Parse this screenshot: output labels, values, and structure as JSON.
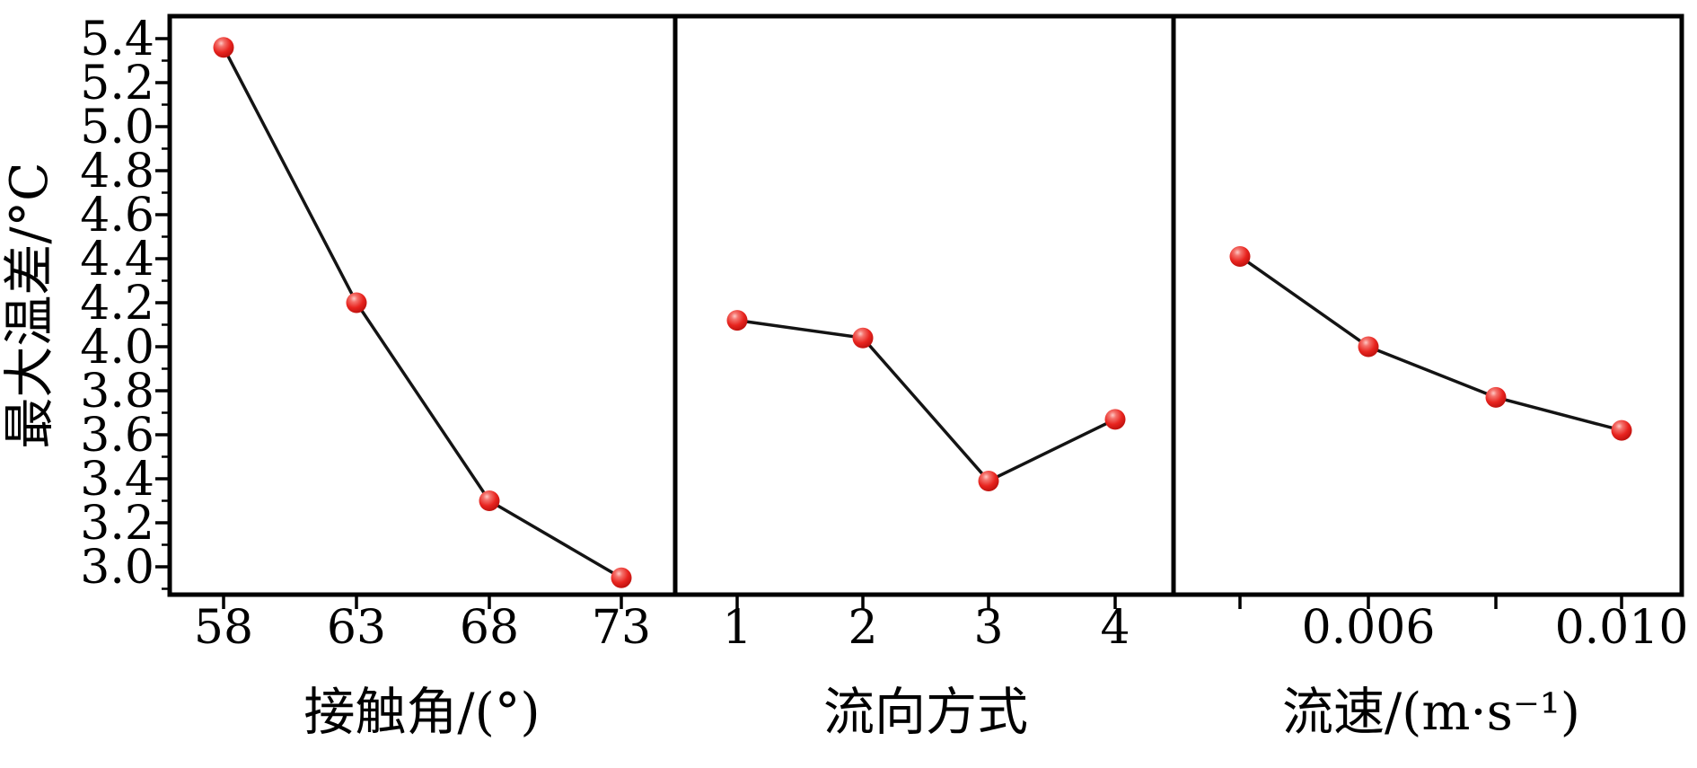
{
  "figure": {
    "background": "#ffffff",
    "axis_color": "#000000",
    "line_color": "#141414",
    "marker_color": "#e8241f",
    "marker_edge": "#b80f0c",
    "marker_highlight": "#ffc9c5"
  },
  "chart_data": {
    "type": "line",
    "title": "",
    "ylabel": "最大温差/°C",
    "ylim": [
      2.87,
      5.5
    ],
    "y_major_tick_step": 0.2,
    "y_minor_tick_step": 0.1,
    "grid": "off",
    "legend": "none",
    "y_axis": {
      "tick_values": [
        3.0,
        3.2,
        3.4,
        3.6,
        3.8,
        4.0,
        4.2,
        4.4,
        4.6,
        4.8,
        5.0,
        5.2,
        5.4
      ],
      "tick_labels": [
        "3.0",
        "3.2",
        "3.4",
        "3.6",
        "3.8",
        "4.0",
        "4.2",
        "4.4",
        "4.6",
        "4.8",
        "5.0",
        "5.2",
        "5.4"
      ]
    },
    "panels": [
      {
        "xlabel": "接触角/(°)",
        "x": [
          58,
          63,
          68,
          73
        ],
        "x_tick_labels": [
          "58",
          "63",
          "68",
          "73"
        ],
        "y": [
          5.36,
          4.2,
          3.3,
          2.95
        ]
      },
      {
        "xlabel": "流向方式",
        "x": [
          1,
          2,
          3,
          4
        ],
        "x_tick_labels": [
          "1",
          "2",
          "3",
          "4"
        ],
        "y": [
          4.12,
          4.04,
          3.39,
          3.67
        ]
      },
      {
        "xlabel": "流速/(m·s⁻¹)",
        "x": [
          0.004,
          0.006,
          0.008,
          0.01
        ],
        "x_tick_labels": [
          "",
          "0.006",
          "",
          "0.010"
        ],
        "y": [
          4.41,
          4.0,
          3.77,
          3.62
        ]
      }
    ]
  }
}
